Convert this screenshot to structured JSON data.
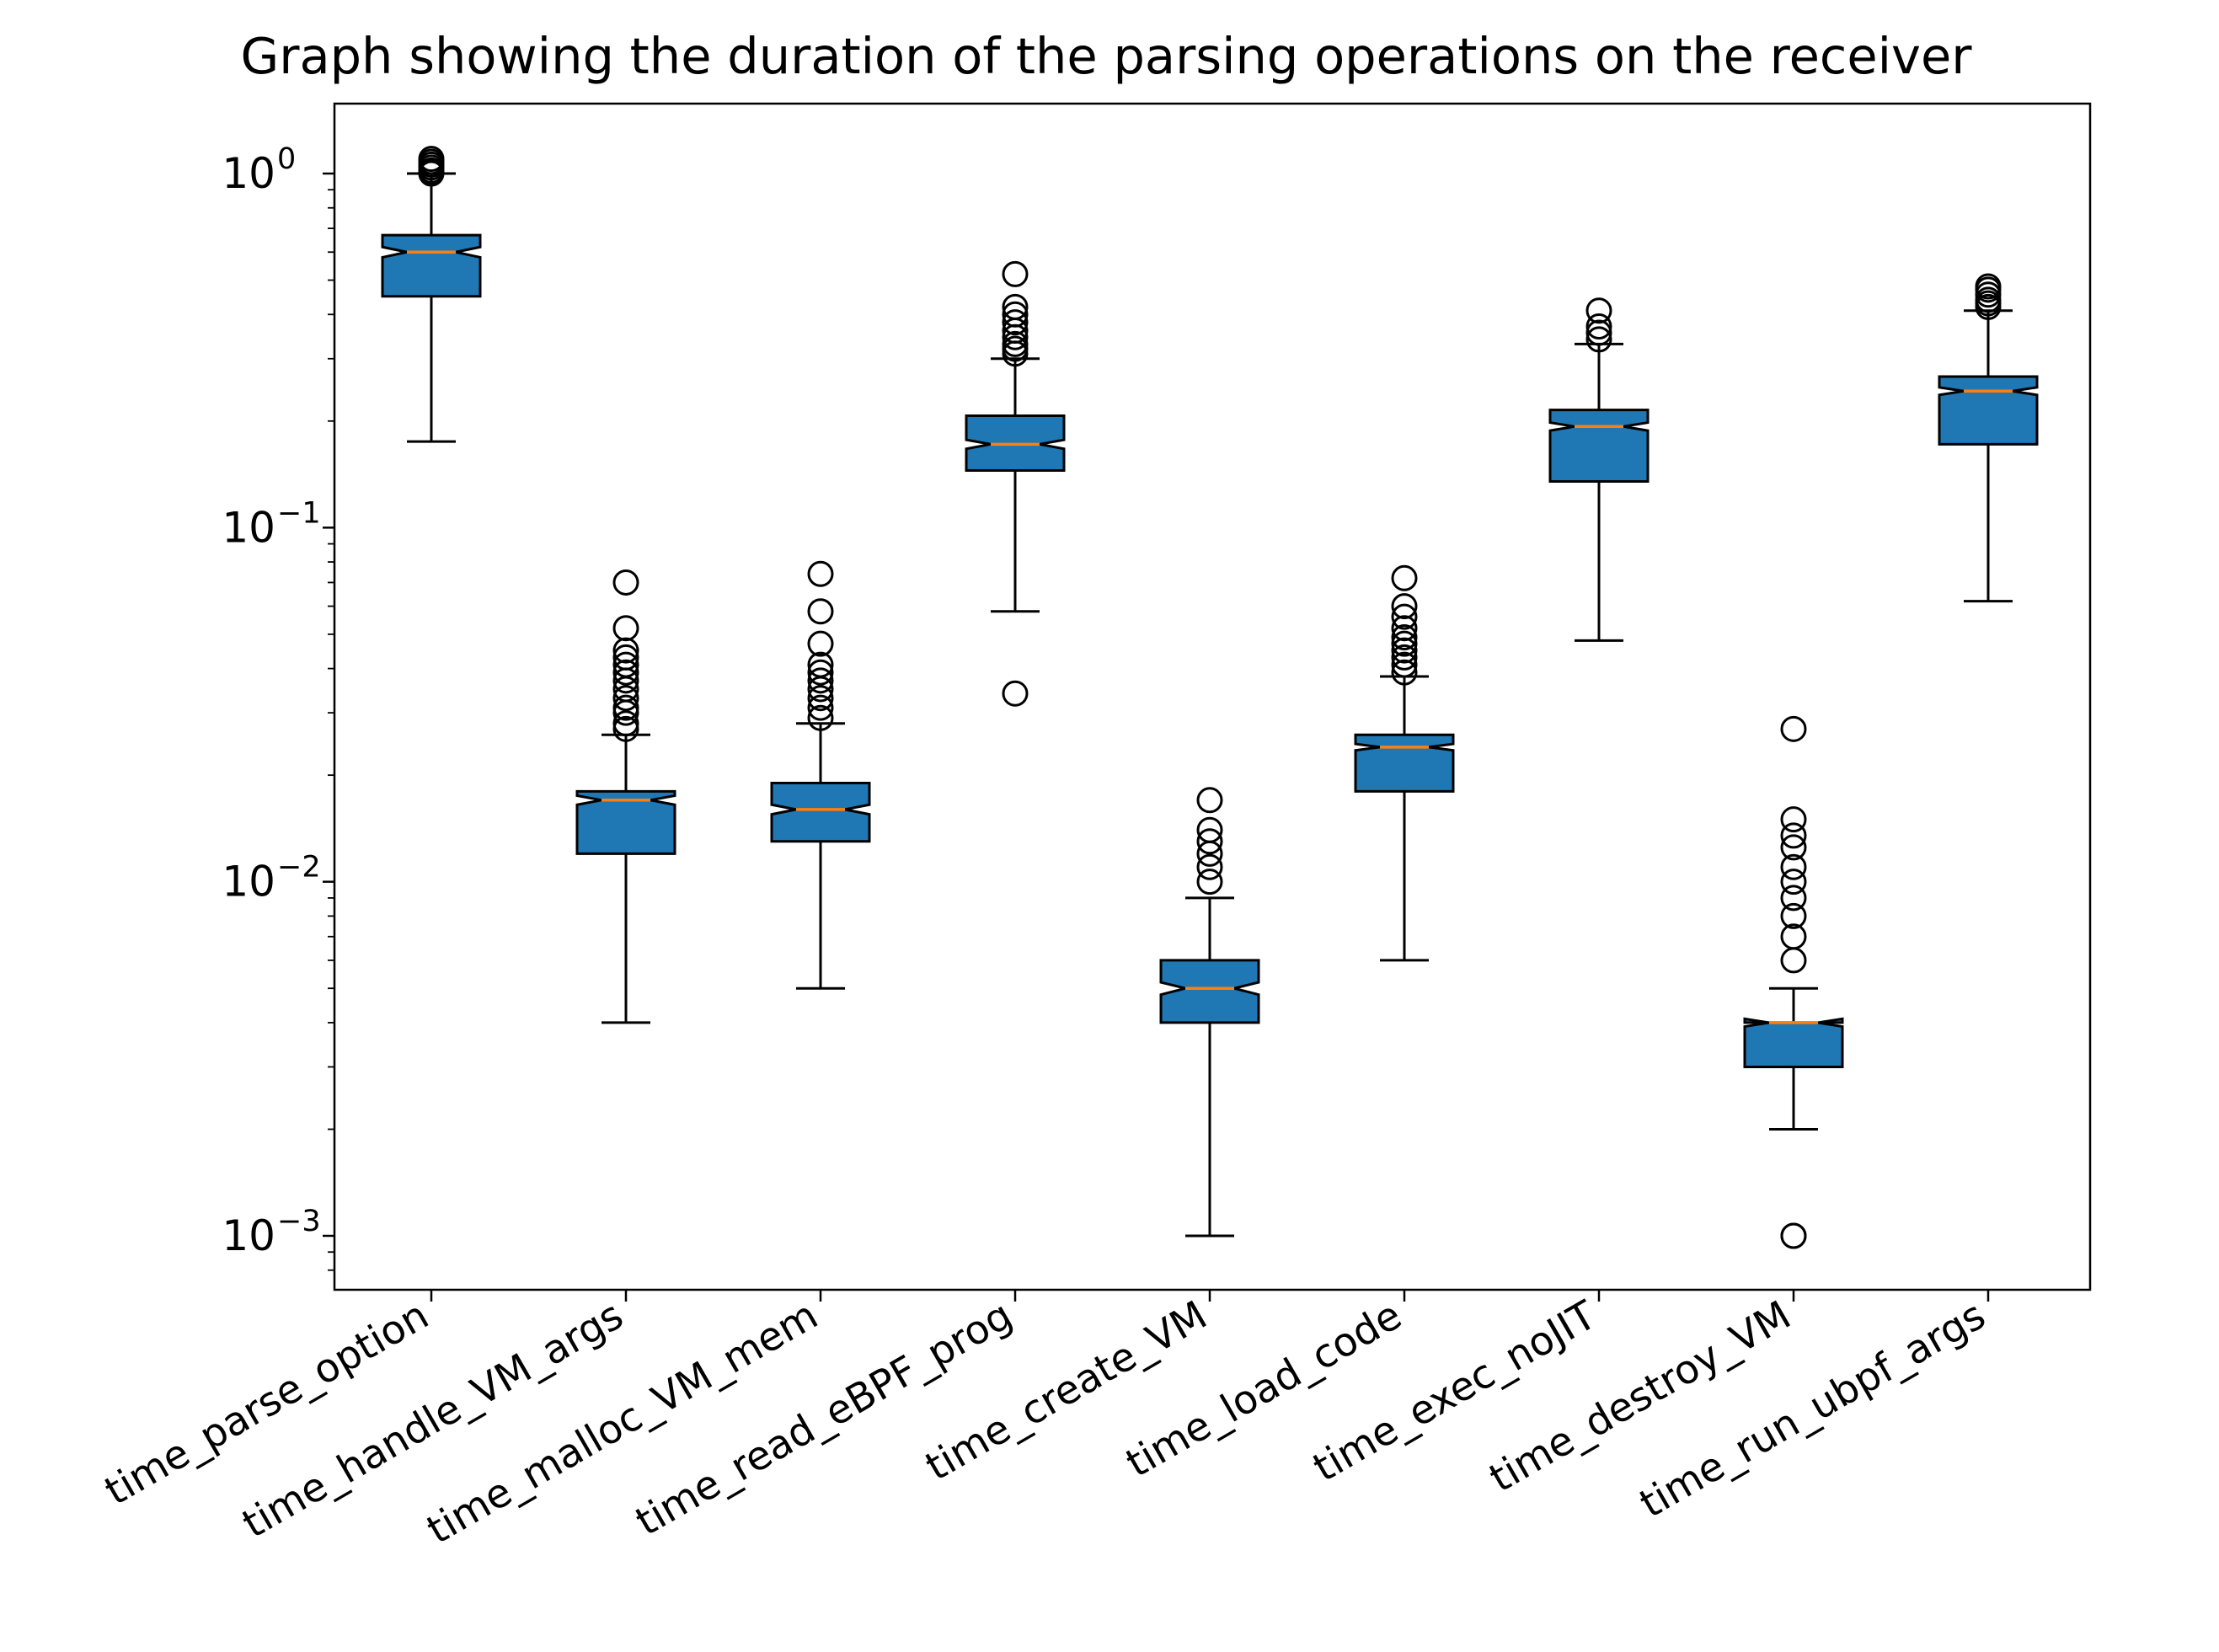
{
  "chart_data": {
    "type": "box",
    "title": "Graph showing the duration of the parsing operations on the receiver",
    "xlabel": "",
    "ylabel": "",
    "yscale": "log",
    "ylim": [
      0.0007,
      1.6
    ],
    "yticks": [
      {
        "base": "10",
        "exp": "0",
        "value": 1
      },
      {
        "base": "10",
        "exp": "−1",
        "value": 0.1
      },
      {
        "base": "10",
        "exp": "−2",
        "value": 0.01
      },
      {
        "base": "10",
        "exp": "−3",
        "value": 0.001
      }
    ],
    "grid": false,
    "notched": true,
    "colors": {
      "box": "#1f77b4",
      "median": "#ff7f0e",
      "line": "#000000"
    },
    "categories": [
      "time_parse_option",
      "time_handle_VM_args",
      "time_malloc_VM_mem",
      "time_read_eBPF_prog",
      "time_create_VM",
      "time_load_code",
      "time_exec_noJIT",
      "time_destroy_VM",
      "time_run_ubpf_args"
    ],
    "boxes": [
      {
        "whislo": 0.175,
        "q1": 0.45,
        "med": 0.6,
        "q3": 0.67,
        "whishi": 1.0,
        "notchlo": 0.58,
        "notchhi": 0.62,
        "fliers": [
          1.0,
          1.01,
          1.02,
          1.04,
          1.06,
          1.08,
          1.1
        ]
      },
      {
        "whislo": 0.004,
        "q1": 0.012,
        "med": 0.017,
        "q3": 0.018,
        "whishi": 0.026,
        "notchlo": 0.0165,
        "notchhi": 0.0175,
        "fliers": [
          0.027,
          0.028,
          0.03,
          0.031,
          0.033,
          0.035,
          0.037,
          0.039,
          0.041,
          0.043,
          0.045,
          0.052,
          0.07
        ]
      },
      {
        "whislo": 0.005,
        "q1": 0.013,
        "med": 0.016,
        "q3": 0.019,
        "whishi": 0.028,
        "notchlo": 0.0155,
        "notchhi": 0.0165,
        "fliers": [
          0.029,
          0.031,
          0.033,
          0.035,
          0.037,
          0.039,
          0.041,
          0.047,
          0.058,
          0.074
        ]
      },
      {
        "whislo": 0.058,
        "q1": 0.145,
        "med": 0.172,
        "q3": 0.207,
        "whishi": 0.3,
        "notchlo": 0.167,
        "notchhi": 0.177,
        "fliers": [
          0.034,
          0.31,
          0.32,
          0.33,
          0.345,
          0.36,
          0.38,
          0.4,
          0.42,
          0.52
        ]
      },
      {
        "whislo": 0.001,
        "q1": 0.004,
        "med": 0.005,
        "q3": 0.006,
        "whishi": 0.009,
        "notchlo": 0.0048,
        "notchhi": 0.0052,
        "fliers": [
          0.01,
          0.011,
          0.012,
          0.013,
          0.014,
          0.017
        ]
      },
      {
        "whislo": 0.006,
        "q1": 0.018,
        "med": 0.024,
        "q3": 0.026,
        "whishi": 0.038,
        "notchlo": 0.0235,
        "notchhi": 0.0245,
        "fliers": [
          0.039,
          0.041,
          0.043,
          0.045,
          0.047,
          0.049,
          0.052,
          0.056,
          0.06,
          0.072
        ]
      },
      {
        "whislo": 0.048,
        "q1": 0.135,
        "med": 0.193,
        "q3": 0.215,
        "whishi": 0.33,
        "notchlo": 0.188,
        "notchhi": 0.198,
        "fliers": [
          0.34,
          0.355,
          0.37,
          0.41
        ]
      },
      {
        "whislo": 0.002,
        "q1": 0.003,
        "med": 0.004,
        "q3": 0.004,
        "whishi": 0.005,
        "notchlo": 0.0039,
        "notchhi": 0.0041,
        "fliers": [
          0.001,
          0.001,
          0.006,
          0.007,
          0.008,
          0.009,
          0.01,
          0.011,
          0.0125,
          0.0135,
          0.015,
          0.027
        ]
      },
      {
        "whislo": 0.062,
        "q1": 0.172,
        "med": 0.243,
        "q3": 0.267,
        "whishi": 0.41,
        "notchlo": 0.237,
        "notchhi": 0.249,
        "fliers": [
          0.42,
          0.43,
          0.44,
          0.455,
          0.47,
          0.48
        ]
      }
    ]
  }
}
